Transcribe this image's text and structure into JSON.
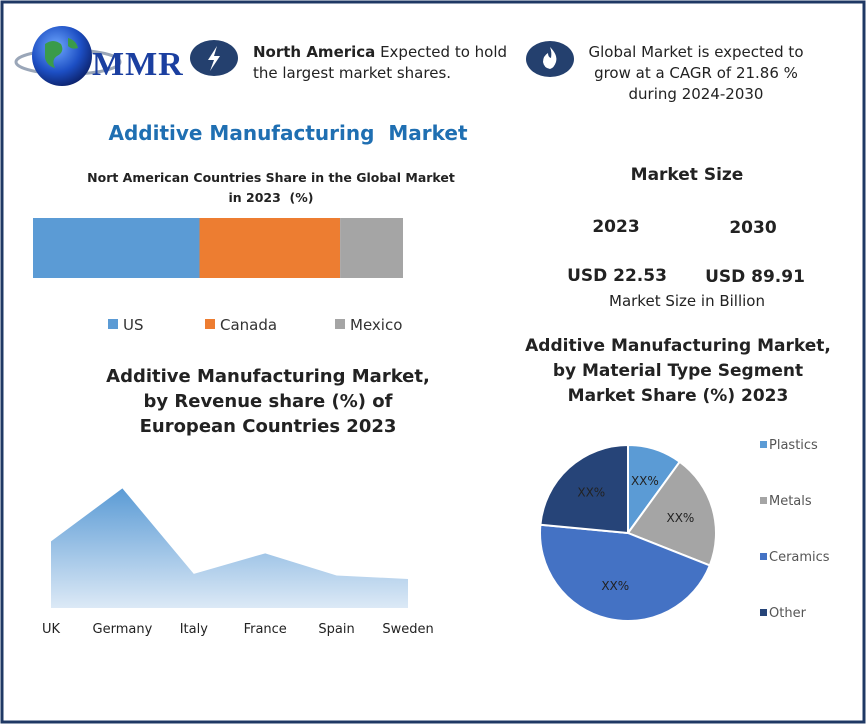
{
  "header": {
    "logo": "MMR",
    "highlights": [
      {
        "bold": "North America",
        "text": "Expected to hold the largest market shares."
      },
      {
        "text": "Global Market is expected to grow at a CAGR of 21.86 % during 2024-2030"
      }
    ]
  },
  "title": "Additive Manufacturing  Market",
  "market_size": {
    "title": "Market Size",
    "columns": [
      {
        "year": "2023",
        "value": "USD 22.53"
      },
      {
        "year": "2030",
        "value": "USD 89.91"
      }
    ],
    "unit": "Market Size in Billion"
  },
  "chart_data": [
    {
      "type": "bar",
      "orientation": "horizontal",
      "stacked": true,
      "title": "Nort American Countries Share in the Global Market in 2023  (%)",
      "xlim": [
        0,
        100
      ],
      "series": [
        {
          "name": "US",
          "color": "#5b9bd5",
          "values": [
            45
          ]
        },
        {
          "name": "Canada",
          "color": "#ed7d31",
          "values": [
            38
          ]
        },
        {
          "name": "Mexico",
          "color": "#a5a5a5",
          "values": [
            17
          ]
        }
      ]
    },
    {
      "type": "area",
      "title": "Additive Manufacturing Market, by Revenue share (%) of European Countries 2023",
      "categories": [
        "UK",
        "Germany",
        "Italy",
        "France",
        "Spain",
        "Sweden"
      ],
      "values": [
        19.5,
        35,
        10,
        16,
        9.5,
        8.5
      ],
      "ylim": [
        0,
        36
      ],
      "color": "#5b9bd5"
    },
    {
      "type": "pie",
      "title": "Additive Manufacturing Market, by Material Type Segment Market Share (%) 2023",
      "categories": [
        "Plastics",
        "Metals",
        "Ceramics",
        "Other"
      ],
      "values": [
        10,
        21,
        45.5,
        23.5
      ],
      "value_labels": [
        "XX%",
        "XX%",
        "XX%",
        "XX%"
      ],
      "colors": [
        "#5b9bd5",
        "#a5a5a5",
        "#4472c4",
        "#264478"
      ]
    }
  ]
}
